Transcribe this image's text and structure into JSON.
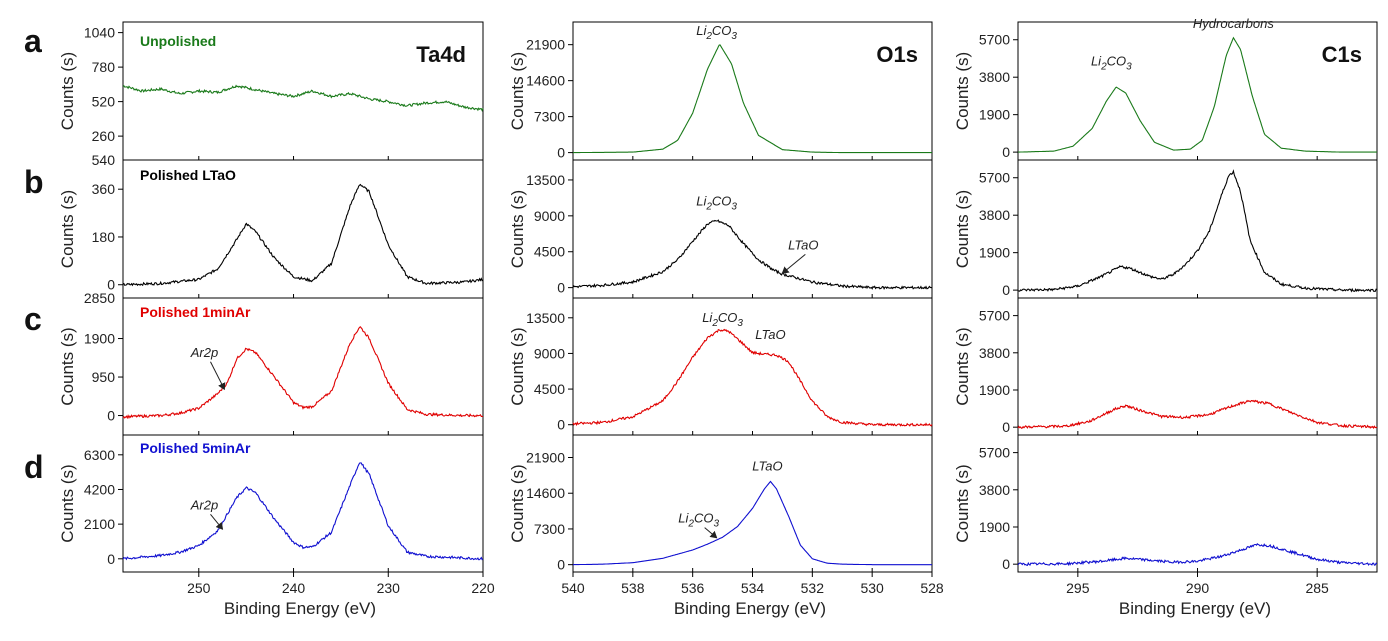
{
  "panel_letters": [
    "a",
    "b",
    "c",
    "d"
  ],
  "core_levels": [
    "Ta4d",
    "O1s",
    "C1s"
  ],
  "sample_labels": [
    {
      "text": "Unpolished",
      "color": "#1a7a1a"
    },
    {
      "text": "Polished LTaO",
      "color": "#000000"
    },
    {
      "text": "Polished 1minAr",
      "color": "#e00000"
    },
    {
      "text": "Polished 5minAr",
      "color": "#1010d0"
    }
  ],
  "ylabel": "Counts (s)",
  "xlabel": "Binding Energy (eV)",
  "columns": [
    {
      "core": "Ta4d",
      "xlim": [
        258,
        220
      ],
      "xticks": [
        250,
        240,
        230,
        220
      ],
      "rows": [
        {
          "ylim": [
            80,
            1120
          ],
          "yticks": [
            260,
            520,
            780,
            1040
          ],
          "extra_tick": 540
        },
        {
          "ylim": [
            -50,
            470
          ],
          "yticks": [
            0,
            180,
            360
          ],
          "extra_tick": 2850
        },
        {
          "ylim": [
            -480,
            2900
          ],
          "yticks": [
            0,
            950,
            1900
          ]
        },
        {
          "ylim": [
            -800,
            7500
          ],
          "yticks": [
            0,
            2100,
            4200,
            6300
          ]
        }
      ]
    },
    {
      "core": "O1s",
      "xlim": [
        540,
        528
      ],
      "xticks": [
        540,
        538,
        536,
        534,
        532,
        530,
        528
      ],
      "rows": [
        {
          "ylim": [
            -1500,
            26500
          ],
          "yticks": [
            0,
            7300,
            14600,
            21900
          ]
        },
        {
          "ylim": [
            -1300,
            16000
          ],
          "yticks": [
            0,
            4500,
            9000,
            13500
          ]
        },
        {
          "ylim": [
            -1300,
            16000
          ],
          "yticks": [
            0,
            4500,
            9000,
            13500
          ]
        },
        {
          "ylim": [
            -1500,
            26500
          ],
          "yticks": [
            0,
            7300,
            14600,
            21900
          ]
        }
      ]
    },
    {
      "core": "C1s",
      "xlim": [
        297.5,
        282.5
      ],
      "xticks": [
        295,
        290,
        285
      ],
      "rows": [
        {
          "ylim": [
            -400,
            6600
          ],
          "yticks": [
            0,
            1900,
            3800,
            5700
          ]
        },
        {
          "ylim": [
            -400,
            6600
          ],
          "yticks": [
            0,
            1900,
            3800,
            5700
          ]
        },
        {
          "ylim": [
            -400,
            6600
          ],
          "yticks": [
            0,
            1900,
            3800,
            5700
          ]
        },
        {
          "ylim": [
            -400,
            6600
          ],
          "yticks": [
            0,
            1900,
            3800,
            5700
          ]
        }
      ]
    }
  ],
  "chart_data": {
    "type": "line",
    "xlabel": "Binding Energy (eV)",
    "ylabel": "Counts (s)",
    "series": [
      {
        "row": 0,
        "col": 0,
        "color": "#1a7a1a",
        "noisy": true,
        "x": [
          258,
          256,
          254,
          252,
          250,
          248,
          246,
          244,
          242,
          240,
          238,
          236,
          234,
          232,
          230,
          228,
          226,
          224,
          222,
          220
        ],
        "y": [
          640,
          600,
          615,
          580,
          600,
          590,
          640,
          610,
          580,
          560,
          600,
          560,
          580,
          540,
          520,
          490,
          510,
          520,
          480,
          460
        ]
      },
      {
        "row": 1,
        "col": 0,
        "color": "#000000",
        "noisy": true,
        "x": [
          258,
          254,
          250,
          248,
          246,
          245,
          244,
          242,
          240,
          238,
          236,
          234,
          233,
          232,
          230,
          228,
          226,
          222,
          220
        ],
        "y": [
          0,
          5,
          20,
          60,
          170,
          230,
          200,
          100,
          30,
          15,
          80,
          300,
          380,
          350,
          150,
          30,
          5,
          10,
          20
        ]
      },
      {
        "row": 2,
        "col": 0,
        "color": "#e00000",
        "noisy": true,
        "x": [
          258,
          254,
          252,
          250,
          248,
          247,
          246,
          245,
          244,
          242,
          240,
          239,
          238,
          236,
          234,
          233,
          232,
          230,
          228,
          226,
          222,
          220
        ],
        "y": [
          -30,
          0,
          60,
          180,
          540,
          800,
          1400,
          1650,
          1550,
          950,
          320,
          200,
          220,
          600,
          1800,
          2200,
          1900,
          800,
          150,
          30,
          0,
          0
        ]
      },
      {
        "row": 3,
        "col": 0,
        "color": "#1010d0",
        "noisy": true,
        "x": [
          258,
          254,
          252,
          250,
          248,
          246,
          245,
          244,
          242,
          240,
          239,
          238,
          236,
          234,
          233,
          232,
          230,
          228,
          226,
          222,
          220
        ],
        "y": [
          0,
          200,
          400,
          800,
          1700,
          3700,
          4300,
          4000,
          2400,
          1000,
          700,
          720,
          1600,
          4500,
          5900,
          5100,
          2000,
          400,
          150,
          50,
          0
        ]
      },
      {
        "row": 0,
        "col": 1,
        "color": "#1a7a1a",
        "noisy": false,
        "x": [
          540,
          538,
          537,
          536.5,
          536,
          535.5,
          535.1,
          534.7,
          534.3,
          533.8,
          533,
          532,
          531,
          528
        ],
        "y": [
          0,
          100,
          700,
          2500,
          8000,
          17000,
          22000,
          18000,
          10000,
          3500,
          600,
          100,
          0,
          0
        ]
      },
      {
        "row": 1,
        "col": 1,
        "color": "#000000",
        "noisy": true,
        "x": [
          540,
          539,
          538,
          537,
          536.5,
          536,
          535.5,
          535.2,
          534.8,
          534.3,
          533.8,
          533.3,
          533,
          532.5,
          532,
          531,
          530,
          528
        ],
        "y": [
          100,
          300,
          700,
          2000,
          3500,
          5800,
          8000,
          8400,
          7800,
          5500,
          3500,
          2200,
          1700,
          1200,
          700,
          200,
          0,
          0
        ]
      },
      {
        "row": 2,
        "col": 1,
        "color": "#e00000",
        "noisy": true,
        "x": [
          540,
          539,
          538,
          537,
          536.5,
          536,
          535.5,
          535.1,
          534.8,
          534.4,
          534,
          533.6,
          533.2,
          532.8,
          532.4,
          532,
          531.5,
          531,
          530,
          528
        ],
        "y": [
          100,
          300,
          1000,
          3000,
          5500,
          8500,
          11000,
          12000,
          11800,
          10500,
          9100,
          8900,
          8800,
          8000,
          5500,
          3000,
          1000,
          300,
          0,
          0
        ]
      },
      {
        "row": 3,
        "col": 1,
        "color": "#1010d0",
        "noisy": false,
        "x": [
          540,
          539,
          538,
          537,
          536,
          535.5,
          535,
          534.5,
          534,
          533.6,
          533.4,
          533.2,
          532.8,
          532.4,
          532,
          531.5,
          531,
          530,
          528
        ],
        "y": [
          0,
          100,
          400,
          1300,
          3000,
          4200,
          5600,
          7800,
          11500,
          15500,
          17000,
          15500,
          10000,
          4000,
          1200,
          300,
          100,
          0,
          0
        ]
      },
      {
        "row": 0,
        "col": 2,
        "color": "#1a7a1a",
        "noisy": false,
        "x": [
          297.5,
          296,
          295.2,
          294.4,
          293.8,
          293.4,
          293,
          292.4,
          291.8,
          291,
          290.3,
          289.8,
          289.3,
          288.8,
          288.5,
          288.2,
          287.7,
          287.2,
          286.5,
          285.5,
          284,
          282.5
        ],
        "y": [
          0,
          50,
          300,
          1200,
          2600,
          3300,
          3000,
          1600,
          500,
          100,
          150,
          600,
          2300,
          4900,
          5800,
          5200,
          2800,
          900,
          200,
          50,
          0,
          0
        ]
      },
      {
        "row": 1,
        "col": 2,
        "color": "#000000",
        "noisy": true,
        "x": [
          297.5,
          296,
          295,
          294,
          293.2,
          292.8,
          292,
          291.5,
          291,
          290.5,
          290,
          289.5,
          289,
          288.7,
          288.5,
          288.2,
          287.8,
          287.2,
          286.5,
          285.5,
          284,
          282.5
        ],
        "y": [
          0,
          30,
          200,
          700,
          1200,
          1100,
          700,
          550,
          800,
          1300,
          2000,
          3000,
          4800,
          5800,
          6000,
          5000,
          2500,
          900,
          300,
          100,
          0,
          0
        ]
      },
      {
        "row": 2,
        "col": 2,
        "color": "#e00000",
        "noisy": true,
        "x": [
          297.5,
          295.5,
          294.5,
          293.5,
          293,
          292.5,
          291.5,
          290.5,
          289.5,
          288.5,
          287.8,
          287,
          286,
          285,
          284,
          282.5
        ],
        "y": [
          0,
          50,
          300,
          900,
          1100,
          900,
          550,
          500,
          650,
          1100,
          1350,
          1200,
          700,
          250,
          80,
          0
        ]
      },
      {
        "row": 3,
        "col": 2,
        "color": "#1010d0",
        "noisy": true,
        "x": [
          297.5,
          295.5,
          294,
          293,
          292,
          291,
          290,
          289,
          288,
          287.5,
          287,
          286,
          285,
          284,
          282.5
        ],
        "y": [
          0,
          20,
          150,
          300,
          200,
          100,
          150,
          400,
          800,
          1000,
          950,
          600,
          250,
          80,
          0
        ]
      }
    ],
    "annotations": [
      {
        "row": 0,
        "col": 1,
        "text": "Li",
        "sub": "2",
        "text2": "CO",
        "sub2": "3",
        "x": 535.2,
        "y": 23900,
        "arrow": null
      },
      {
        "row": 1,
        "col": 1,
        "text": "Li",
        "sub": "2",
        "text2": "CO",
        "sub2": "3",
        "x": 535.2,
        "y": 10300,
        "arrow": null
      },
      {
        "row": 1,
        "col": 1,
        "text": "LTaO",
        "sub": "",
        "text2": "",
        "sub2": "",
        "x": 532.3,
        "y": 4800,
        "arrow": [
          533.0,
          1800
        ]
      },
      {
        "row": 2,
        "col": 1,
        "text": "Li",
        "sub": "2",
        "text2": "CO",
        "sub2": "3",
        "x": 535.0,
        "y": 13000,
        "arrow": null
      },
      {
        "row": 2,
        "col": 1,
        "text": "LTaO",
        "sub": "",
        "text2": "",
        "sub2": "",
        "x": 533.4,
        "y": 10800,
        "arrow": null
      },
      {
        "row": 3,
        "col": 1,
        "text": "LTaO",
        "sub": "",
        "text2": "",
        "sub2": "",
        "x": 533.5,
        "y": 19200,
        "arrow": null
      },
      {
        "row": 3,
        "col": 1,
        "text": "Li",
        "sub": "2",
        "text2": "CO",
        "sub2": "3",
        "x": 535.8,
        "y": 8600,
        "arrow": [
          535.2,
          5500
        ]
      },
      {
        "row": 0,
        "col": 2,
        "text": "Li",
        "sub": "2",
        "text2": "CO",
        "sub2": "3",
        "x": 293.6,
        "y": 4400,
        "arrow": null
      },
      {
        "row": 0,
        "col": 2,
        "text": "Hydrocarbons",
        "sub": "",
        "text2": "",
        "sub2": "",
        "x": 288.5,
        "y": 6300,
        "arrow": null
      },
      {
        "row": 2,
        "col": 0,
        "text": "Ar2p",
        "sub": "",
        "text2": "",
        "sub2": "",
        "x": 249.4,
        "y": 1450,
        "arrow": [
          247.3,
          650
        ]
      },
      {
        "row": 3,
        "col": 0,
        "text": "Ar2p",
        "sub": "",
        "text2": "",
        "sub2": "",
        "x": 249.4,
        "y": 3000,
        "arrow": [
          247.5,
          1800
        ]
      }
    ]
  }
}
